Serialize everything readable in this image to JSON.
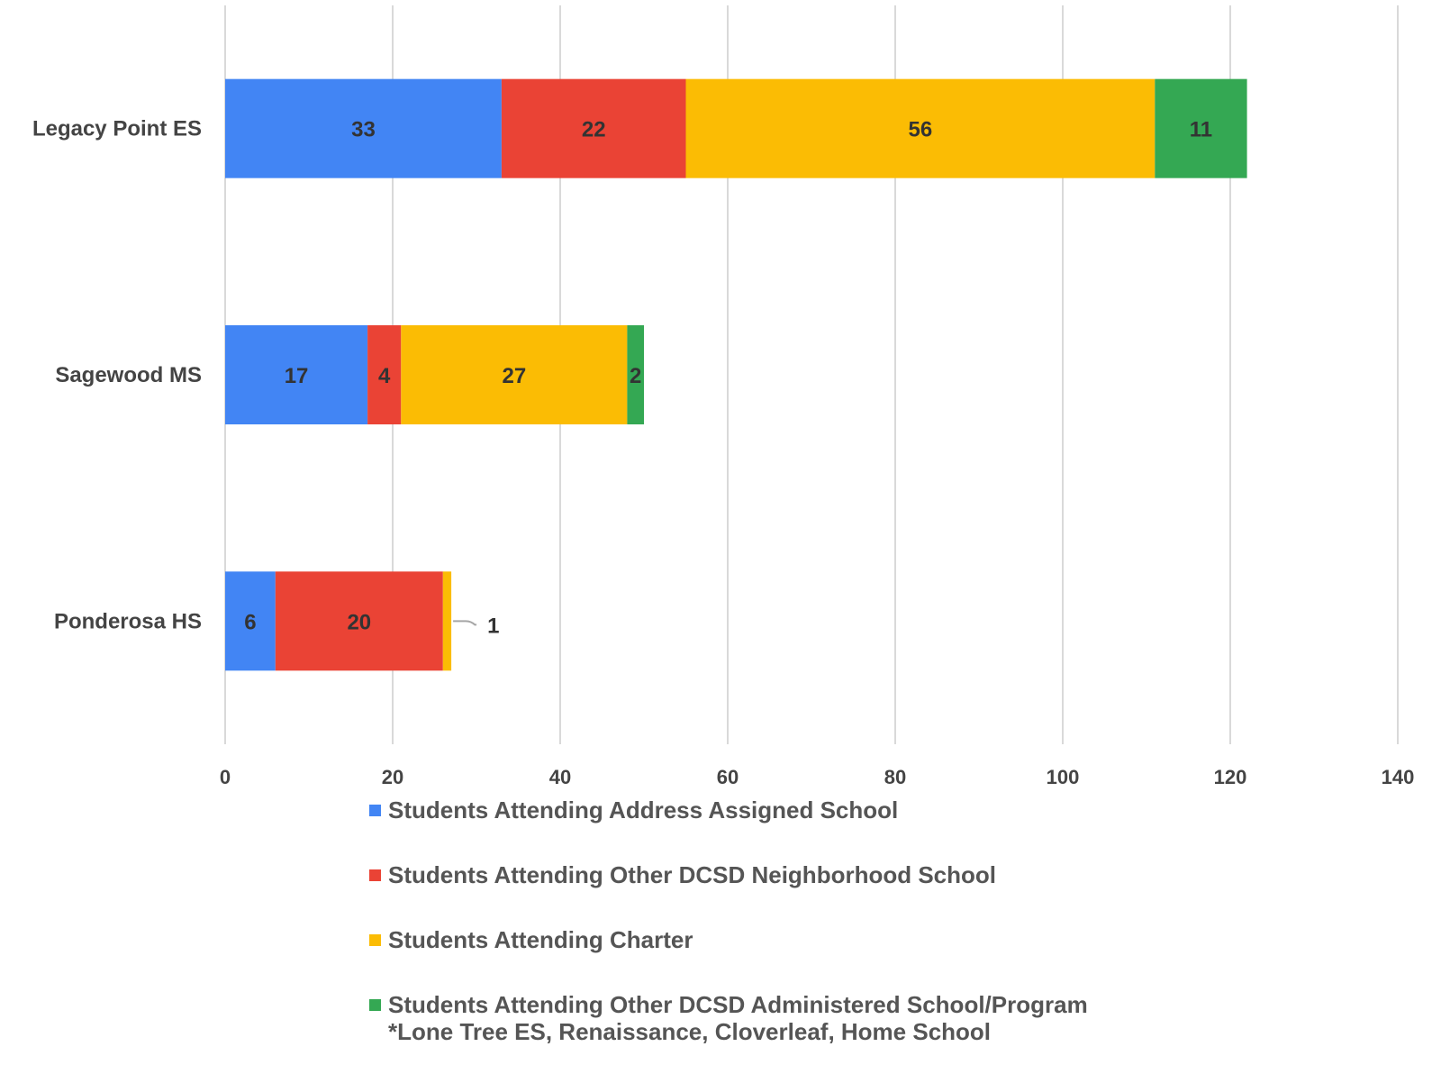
{
  "chart_data": {
    "type": "bar",
    "orientation": "horizontal",
    "stacked": true,
    "categories": [
      "Legacy Point ES",
      "Sagewood MS",
      "Ponderosa HS"
    ],
    "series": [
      {
        "name": "Students Attending Address Assigned School",
        "color": "#4285f4",
        "values": [
          33,
          17,
          6
        ]
      },
      {
        "name": "Students Attending Other DCSD Neighborhood School",
        "color": "#ea4335",
        "values": [
          22,
          4,
          20
        ]
      },
      {
        "name": "Students Attending Charter",
        "color": "#fbbc04",
        "values": [
          56,
          27,
          1
        ]
      },
      {
        "name": "Students Attending Other DCSD Administered School/Program",
        "color": "#34a853",
        "values": [
          11,
          2,
          0
        ]
      }
    ],
    "legend_note": "*Lone Tree ES, Renaissance, Cloverleaf, Home School",
    "xlim": [
      0,
      140
    ],
    "x_ticks": [
      0,
      20,
      40,
      60,
      80,
      100,
      120,
      140
    ],
    "grid": "vertical",
    "legend_position": "bottom",
    "title": "",
    "xlabel": "",
    "ylabel": ""
  }
}
